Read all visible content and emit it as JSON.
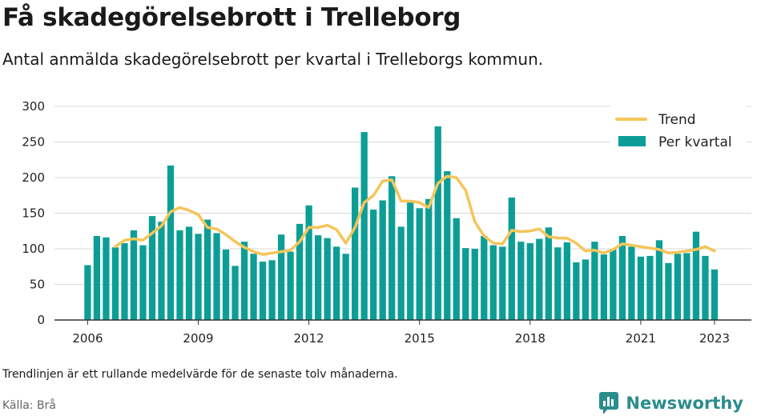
{
  "title": "Få skadegörelsebrott i Trelleborg",
  "subtitle": "Antal anmälda skadegörelsebrott per kvartal i Trelleborgs kommun.",
  "note": "Trendlinjen är ett rullande medelvärde för de senaste tolv månaderna.",
  "source": "Källa: Brå",
  "brand": "Newsworthy",
  "colors": {
    "bars": "#0c9e96",
    "trend": "#f5c55a",
    "grid": "#d9d9d9",
    "axis": "#333333",
    "brand": "#2b8c8c"
  },
  "chart_data": {
    "type": "bar",
    "x_start": 2006.0,
    "x_step": 0.25,
    "xlim": [
      2005.1,
      2024.0
    ],
    "ylim": [
      0,
      300
    ],
    "yticks": [
      0,
      50,
      100,
      150,
      200,
      250,
      300
    ],
    "xticks": [
      2006,
      2009,
      2012,
      2015,
      2018,
      2021,
      2023
    ],
    "grid": true,
    "legend_position": "top-right",
    "series": [
      {
        "name": "Trend",
        "kind": "line",
        "x": [
          2006.75,
          2007.0,
          2007.25,
          2007.5,
          2007.75,
          2008.0,
          2008.25,
          2008.5,
          2008.75,
          2009.0,
          2009.25,
          2009.5,
          2009.75,
          2010.0,
          2010.25,
          2010.5,
          2010.75,
          2011.0,
          2011.25,
          2011.5,
          2011.75,
          2012.0,
          2012.25,
          2012.5,
          2012.75,
          2013.0,
          2013.25,
          2013.5,
          2013.75,
          2014.0,
          2014.25,
          2014.5,
          2014.75,
          2015.0,
          2015.25,
          2015.5,
          2015.75,
          2016.0,
          2016.25,
          2016.5,
          2016.75,
          2017.0,
          2017.25,
          2017.5,
          2017.75,
          2018.0,
          2018.25,
          2018.5,
          2018.75,
          2019.0,
          2019.25,
          2019.5,
          2019.75,
          2020.0,
          2020.25,
          2020.5,
          2020.75,
          2021.0,
          2021.25,
          2021.5,
          2021.75,
          2022.0,
          2022.25,
          2022.5,
          2022.75,
          2023.0
        ],
        "values": [
          103,
          112,
          114,
          112,
          122,
          132,
          152,
          158,
          154,
          148,
          130,
          128,
          120,
          110,
          102,
          96,
          92,
          94,
          96,
          98,
          110,
          130,
          130,
          133,
          127,
          108,
          130,
          165,
          175,
          195,
          197,
          167,
          167,
          165,
          158,
          192,
          202,
          200,
          182,
          138,
          118,
          108,
          107,
          126,
          124,
          125,
          128,
          117,
          115,
          115,
          108,
          97,
          98,
          94,
          99,
          107,
          105,
          103,
          101,
          99,
          94,
          95,
          97,
          99,
          103,
          97
        ]
      },
      {
        "name": "Per kvartal",
        "kind": "bar",
        "values": [
          77,
          118,
          116,
          102,
          108,
          126,
          105,
          146,
          138,
          217,
          126,
          131,
          121,
          141,
          122,
          99,
          76,
          110,
          93,
          82,
          84,
          120,
          96,
          135,
          161,
          119,
          115,
          103,
          93,
          186,
          264,
          155,
          168,
          202,
          131,
          165,
          157,
          170,
          272,
          209,
          143,
          101,
          100,
          118,
          105,
          103,
          172,
          110,
          108,
          114,
          130,
          102,
          109,
          81,
          85,
          110,
          92,
          99,
          118,
          103,
          89,
          90,
          112,
          80,
          93,
          94,
          124,
          90,
          71
        ]
      }
    ]
  }
}
